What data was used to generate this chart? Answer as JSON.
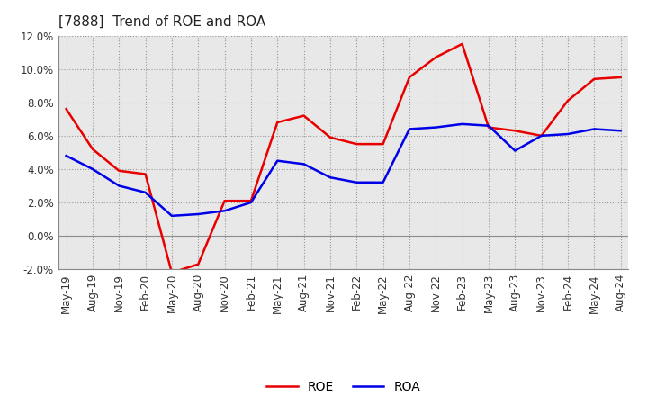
{
  "title": "[7888]  Trend of ROE and ROA",
  "x_labels": [
    "May-19",
    "Aug-19",
    "Nov-19",
    "Feb-20",
    "May-20",
    "Aug-20",
    "Nov-20",
    "Feb-21",
    "May-21",
    "Aug-21",
    "Nov-21",
    "Feb-22",
    "May-22",
    "Aug-22",
    "Nov-22",
    "Feb-23",
    "May-23",
    "Aug-23",
    "Nov-23",
    "Feb-24",
    "May-24",
    "Aug-24"
  ],
  "roe": [
    7.6,
    5.2,
    3.9,
    3.7,
    -2.2,
    -1.7,
    2.1,
    2.1,
    6.8,
    7.2,
    5.9,
    5.5,
    5.5,
    9.5,
    10.7,
    11.5,
    6.5,
    6.3,
    6.0,
    8.1,
    9.4,
    9.5
  ],
  "roa": [
    4.8,
    4.0,
    3.0,
    2.6,
    1.2,
    1.3,
    1.5,
    2.0,
    4.5,
    4.3,
    3.5,
    3.2,
    3.2,
    6.4,
    6.5,
    6.7,
    6.6,
    5.1,
    6.0,
    6.1,
    6.4,
    6.3
  ],
  "roe_color": "#e80000",
  "roa_color": "#0000e8",
  "background_color": "#ffffff",
  "plot_bg_color": "#e8e8e8",
  "ylim": [
    -2.0,
    12.0
  ],
  "yticks": [
    -2.0,
    0.0,
    2.0,
    4.0,
    6.0,
    8.0,
    10.0,
    12.0
  ],
  "grid_color": "#999999",
  "title_fontsize": 11,
  "legend_fontsize": 10,
  "tick_fontsize": 8.5
}
